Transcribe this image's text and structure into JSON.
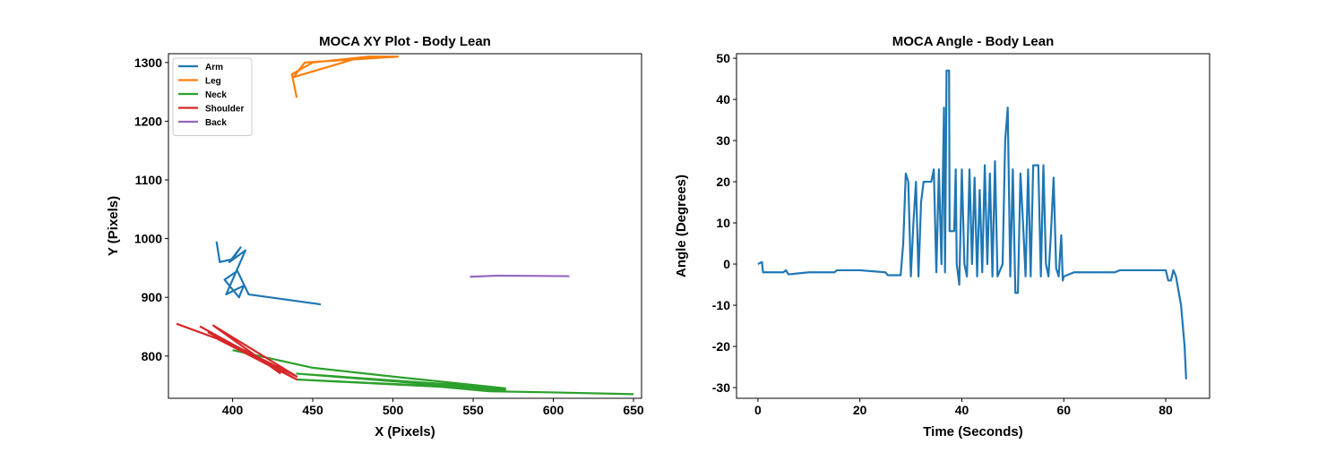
{
  "chart_data": [
    {
      "type": "line",
      "title": "MOCA XY Plot - Body Lean",
      "x_label": "X (Pixels)",
      "y_label": "Y (Pixels)",
      "xlim": [
        360,
        655
      ],
      "ylim": [
        728,
        1315
      ],
      "xticks": [
        400,
        450,
        500,
        550,
        600,
        650
      ],
      "yticks": [
        800,
        900,
        1000,
        1100,
        1200,
        1300
      ],
      "legend": "upper left",
      "series": [
        {
          "name": "Arm",
          "color": "#1f77b4",
          "x": [
            390,
            392,
            400,
            405,
            398,
            408,
            396,
            407,
            404,
            395,
            403,
            410,
            455
          ],
          "values": [
            995,
            960,
            965,
            985,
            960,
            980,
            905,
            920,
            900,
            930,
            945,
            905,
            888
          ]
        },
        {
          "name": "Leg",
          "color": "#ff7f0e",
          "x": [
            440,
            437,
            450,
            485,
            503,
            445,
            438,
            475
          ],
          "values": [
            1240,
            1280,
            1300,
            1310,
            1310,
            1300,
            1275,
            1305
          ]
        },
        {
          "name": "Neck",
          "color": "#2ca02c",
          "x": [
            400,
            450,
            500,
            570,
            440,
            570,
            440,
            520,
            560,
            600,
            650
          ],
          "values": [
            810,
            780,
            765,
            745,
            770,
            742,
            760,
            750,
            740,
            738,
            735
          ]
        },
        {
          "name": "Shoulder",
          "color": "#d62728",
          "x": [
            365,
            390,
            440,
            380,
            420,
            385,
            440,
            388,
            430
          ],
          "values": [
            855,
            830,
            760,
            850,
            790,
            840,
            765,
            852,
            770
          ]
        },
        {
          "name": "Back",
          "color": "#9467bd",
          "x": [
            548,
            565,
            610
          ],
          "values": [
            935,
            937,
            936
          ]
        }
      ]
    },
    {
      "type": "line",
      "title": "MOCA Angle - Body Lean",
      "x_label": "Time (Seconds)",
      "y_label": "Angle (Degrees)",
      "xlim": [
        -4.2,
        88.6
      ],
      "ylim": [
        -32.6,
        51.1
      ],
      "xticks": [
        0,
        20,
        40,
        60,
        80
      ],
      "yticks": [
        -30,
        -20,
        -10,
        0,
        10,
        20,
        30,
        40,
        50
      ],
      "series": [
        {
          "color": "#1f77b4",
          "x": [
            0,
            0.8,
            1,
            5,
            5.5,
            6,
            10,
            15,
            15.5,
            20,
            25,
            25.5,
            28,
            28.5,
            29,
            29.5,
            30,
            30.5,
            31,
            31.5,
            32,
            32.5,
            34,
            34.5,
            35,
            35.5,
            36,
            36.5,
            36.7,
            37,
            37.5,
            37.6,
            38.5,
            38.8,
            39,
            39.5,
            40,
            40.5,
            41,
            41.5,
            42,
            42.5,
            43,
            43.5,
            44,
            44.5,
            45,
            45.5,
            46,
            46.5,
            47,
            48,
            48.5,
            49,
            49.5,
            50,
            50.5,
            51,
            51.5,
            52,
            52.5,
            53,
            53.5,
            54,
            55,
            55.5,
            56,
            56.5,
            57,
            57.5,
            58,
            58.5,
            59,
            59.5,
            59.8,
            60,
            62,
            65,
            70,
            71,
            74,
            80,
            80.5,
            81,
            81.5,
            82,
            83,
            83.7,
            84
          ],
          "values": [
            0,
            0.5,
            -2,
            -2,
            -1.5,
            -2.5,
            -2,
            -2,
            -1.5,
            -1.5,
            -2,
            -2.7,
            -2.7,
            5,
            22,
            20,
            -3,
            10,
            20,
            -3,
            15,
            20,
            20,
            23,
            -2,
            23,
            0,
            38,
            -2,
            47,
            47,
            8,
            8,
            23,
            0,
            -5,
            23,
            0,
            -3,
            23,
            0,
            21,
            -3,
            18,
            -2,
            24,
            0,
            22,
            -3,
            25,
            -3,
            0,
            30,
            38,
            -3,
            23,
            -7,
            -7,
            22,
            10,
            -3,
            23,
            -3,
            24,
            24,
            -3,
            24,
            0,
            -3,
            8,
            21,
            -1,
            -3,
            7,
            -4,
            -3,
            -2,
            -2,
            -2,
            -1.5,
            -1.5,
            -1.5,
            -4,
            -4,
            -1.5,
            -3,
            -10,
            -20,
            -28
          ]
        }
      ]
    }
  ]
}
